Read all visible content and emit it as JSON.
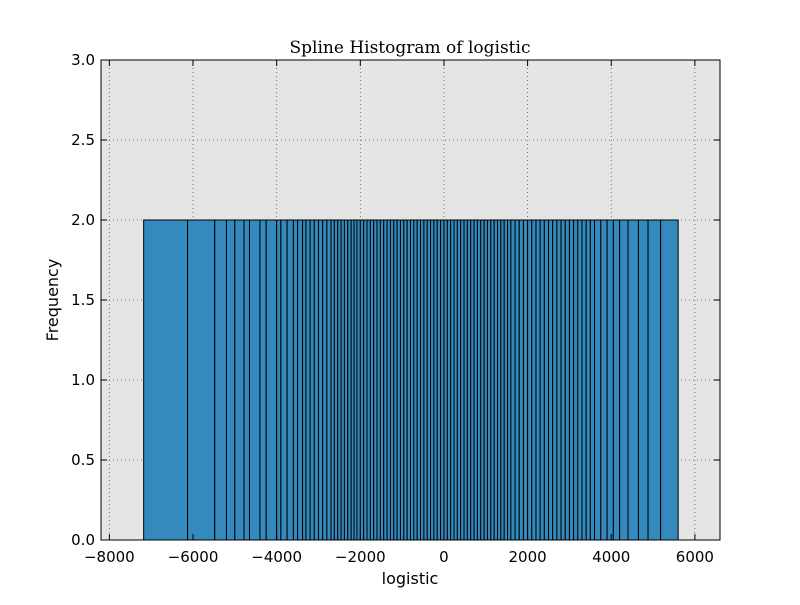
{
  "chart_data": {
    "type": "bar",
    "title": "Spline Histogram of logistic",
    "xlabel": "logistic",
    "ylabel": "Frequency",
    "xlim": [
      -8200,
      6600
    ],
    "ylim": [
      0,
      3.0
    ],
    "xticks": [
      -8000,
      -6000,
      -4000,
      -2000,
      0,
      2000,
      4000,
      6000
    ],
    "xtick_labels": [
      "−8000",
      "−6000",
      "−4000",
      "−2000",
      "0",
      "2000",
      "4000",
      "6000"
    ],
    "yticks": [
      0.0,
      0.5,
      1.0,
      1.5,
      2.0,
      2.5,
      3.0
    ],
    "ytick_labels": [
      "0.0",
      "0.5",
      "1.0",
      "1.5",
      "2.0",
      "2.5",
      "3.0"
    ],
    "grid": true,
    "bin_edges": [
      -7180,
      -6130,
      -5480,
      -5200,
      -5000,
      -4780,
      -4650,
      -4400,
      -4250,
      -4000,
      -3900,
      -3750,
      -3600,
      -3500,
      -3380,
      -3300,
      -3200,
      -3100,
      -3000,
      -2900,
      -2800,
      -2700,
      -2620,
      -2540,
      -2460,
      -2380,
      -2300,
      -2220,
      -2150,
      -2080,
      -2000,
      -1920,
      -1840,
      -1760,
      -1680,
      -1600,
      -1520,
      -1440,
      -1360,
      -1280,
      -1200,
      -1120,
      -1040,
      -960,
      -880,
      -800,
      -720,
      -640,
      -560,
      -480,
      -400,
      -320,
      -240,
      -160,
      -80,
      0,
      80,
      160,
      240,
      320,
      400,
      480,
      560,
      640,
      720,
      800,
      880,
      960,
      1040,
      1120,
      1200,
      1280,
      1360,
      1440,
      1520,
      1600,
      1700,
      1800,
      1900,
      2000,
      2100,
      2200,
      2300,
      2400,
      2500,
      2600,
      2700,
      2800,
      2900,
      3000,
      3100,
      3200,
      3300,
      3400,
      3500,
      3600,
      3750,
      3900,
      4050,
      4200,
      4400,
      4650,
      4880,
      5180,
      5600
    ],
    "frequency_per_bin": 2,
    "bar_color": "#348abd",
    "edge_color": "#000000",
    "plot_background": "#e5e5e5"
  }
}
